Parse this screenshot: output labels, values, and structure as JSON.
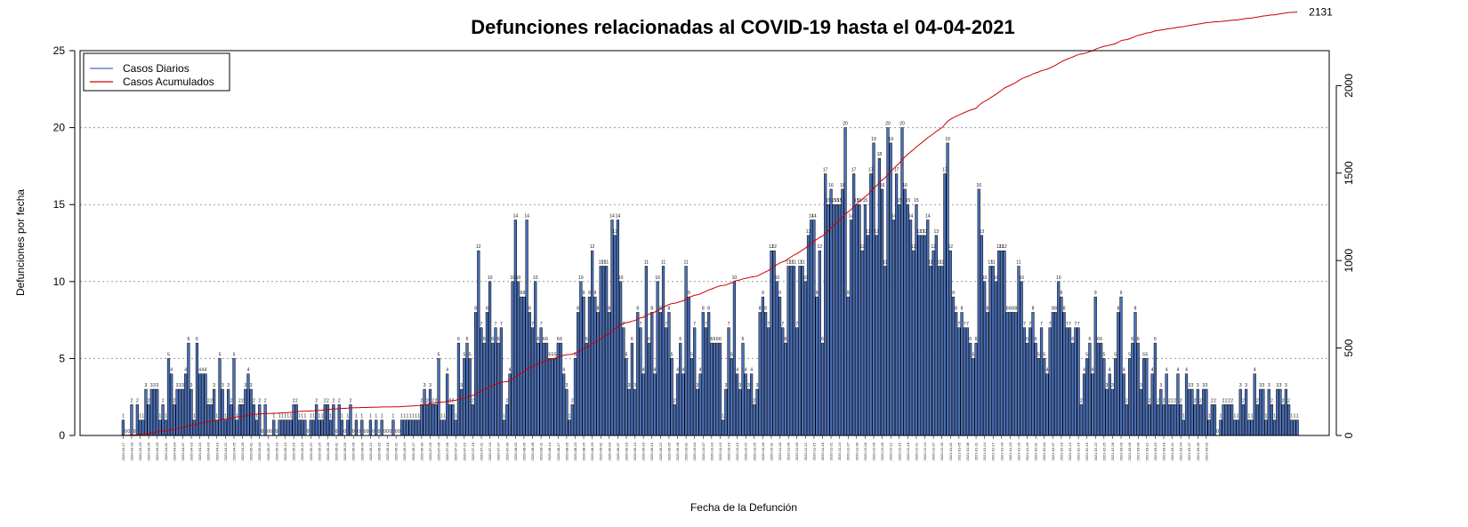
{
  "chart_data": {
    "type": "bar",
    "title": "Defunciones relacionadas al COVID-19 hasta el 04-04-2021",
    "xlabel": "Fecha de la Defunción",
    "ylabel": "Defunciones por fecha",
    "ylim": [
      0,
      25
    ],
    "y_ticks": [
      0,
      5,
      10,
      15,
      20,
      25
    ],
    "y2_ticks": [
      0,
      500,
      1000,
      1500,
      2000
    ],
    "y2lim": [
      0,
      2200
    ],
    "grid": "horizontal-dotted",
    "legend_position": "top-left",
    "colors": {
      "bars": "#4a6fb8",
      "bar_edge": "#000000",
      "cumulative": "#cc0000",
      "daily_legend": "#4a6fb8"
    },
    "start_date": "2020-03-17",
    "end_date": "2021-04-03",
    "cumulative_final_label": "2131",
    "series": [
      {
        "name": "Casos Diarios"
      },
      {
        "name": "Casos Acumulados"
      }
    ],
    "date_labels": [
      "2020-03-17",
      "2020-03-20",
      "2020-03-23",
      "2020-03-26",
      "2020-03-29",
      "2020-04-01",
      "2020-04-04",
      "2020-04-07",
      "2020-04-10",
      "2020-04-13",
      "2020-04-16",
      "2020-04-19",
      "2020-04-22",
      "2020-04-25",
      "2020-04-28",
      "2020-05-01",
      "2020-05-04",
      "2020-05-07",
      "2020-05-10",
      "2020-05-13",
      "2020-05-16",
      "2020-05-19",
      "2020-05-22",
      "2020-05-25",
      "2020-05-28",
      "2020-05-31",
      "2020-06-03",
      "2020-06-06",
      "2020-06-09",
      "2020-06-12",
      "2020-06-15",
      "2020-06-18",
      "2020-06-21",
      "2020-06-24",
      "2020-06-27",
      "2020-06-30",
      "2020-07-03",
      "2020-07-06",
      "2020-07-09",
      "2020-07-12",
      "2020-07-15",
      "2020-07-18",
      "2020-07-21",
      "2020-07-24",
      "2020-07-27",
      "2020-07-30",
      "2020-08-02",
      "2020-08-05",
      "2020-08-08",
      "2020-08-11",
      "2020-08-14",
      "2020-08-17",
      "2020-08-20",
      "2020-08-23",
      "2020-08-26",
      "2020-08-29",
      "2020-09-01",
      "2020-09-04",
      "2020-09-07",
      "2020-09-10",
      "2020-09-13",
      "2020-09-16",
      "2020-09-19",
      "2020-09-22",
      "2020-09-25",
      "2020-09-28",
      "2020-10-01",
      "2020-10-04",
      "2020-10-07",
      "2020-10-10",
      "2020-10-13",
      "2020-10-16",
      "2020-10-19",
      "2020-10-22",
      "2020-10-25",
      "2020-10-28",
      "2020-10-31",
      "2020-11-03",
      "2020-11-06",
      "2020-11-09",
      "2020-11-12",
      "2020-11-15",
      "2020-11-18",
      "2020-11-21",
      "2020-11-24",
      "2020-11-27",
      "2020-11-30",
      "2020-12-03",
      "2020-12-06",
      "2020-12-09",
      "2020-12-12",
      "2020-12-15",
      "2020-12-18",
      "2020-12-21",
      "2020-12-24",
      "2020-12-27",
      "2020-12-30",
      "2021-01-02",
      "2021-01-05",
      "2021-01-08",
      "2021-01-11",
      "2021-01-14",
      "2021-01-17",
      "2021-01-20",
      "2021-01-23",
      "2021-01-26",
      "2021-01-29",
      "2021-02-01",
      "2021-02-04",
      "2021-02-07",
      "2021-02-10",
      "2021-02-13",
      "2021-02-16",
      "2021-02-19",
      "2021-02-22",
      "2021-02-25",
      "2021-02-28",
      "2021-03-03",
      "2021-03-06",
      "2021-03-09",
      "2021-03-12",
      "2021-03-15",
      "2021-03-18",
      "2021-03-21",
      "2021-03-24",
      "2021-03-27",
      "2021-03-30",
      "2021-04-02"
    ],
    "values": [
      1,
      0,
      0,
      2,
      0,
      2,
      1,
      1,
      3,
      2,
      3,
      3,
      3,
      1,
      2,
      1,
      5,
      4,
      2,
      3,
      3,
      3,
      4,
      6,
      3,
      1,
      6,
      4,
      4,
      4,
      2,
      2,
      3,
      1,
      5,
      3,
      1,
      3,
      2,
      5,
      1,
      2,
      2,
      3,
      4,
      3,
      2,
      1,
      2,
      0,
      2,
      0,
      0,
      1,
      0,
      1,
      1,
      1,
      1,
      1,
      2,
      2,
      1,
      1,
      1,
      0,
      1,
      1,
      2,
      1,
      1,
      2,
      2,
      1,
      2,
      0,
      2,
      1,
      0,
      1,
      2,
      0,
      1,
      0,
      1,
      0,
      0,
      1,
      0,
      1,
      0,
      1,
      0,
      0,
      0,
      1,
      0,
      0,
      1,
      1,
      1,
      1,
      1,
      1,
      1,
      2,
      3,
      2,
      3,
      2,
      2,
      5,
      1,
      1,
      4,
      2,
      2,
      1,
      6,
      3,
      5,
      6,
      5,
      2,
      8,
      12,
      7,
      6,
      8,
      10,
      6,
      7,
      6,
      7,
      1,
      2,
      4,
      10,
      14,
      10,
      9,
      9,
      14,
      8,
      7,
      10,
      6,
      7,
      6,
      6,
      5,
      5,
      5,
      6,
      6,
      4,
      3,
      1,
      2,
      5,
      8,
      10,
      9,
      6,
      9,
      12,
      9,
      8,
      11,
      11,
      11,
      8,
      14,
      13,
      14,
      10,
      7,
      5,
      3,
      6,
      3,
      8,
      7,
      4,
      11,
      6,
      8,
      4,
      10,
      8,
      11,
      7,
      8,
      5,
      2,
      4,
      6,
      4,
      11,
      9,
      5,
      7,
      3,
      4,
      8,
      7,
      8,
      6,
      6,
      6,
      6,
      1,
      3,
      7,
      5,
      10,
      4,
      3,
      6,
      4,
      3,
      4,
      2,
      3,
      8,
      9,
      8,
      7,
      12,
      12,
      10,
      9,
      7,
      6,
      11,
      11,
      11,
      7,
      11,
      11,
      10,
      13,
      14,
      14,
      9,
      12,
      6,
      17,
      15,
      16,
      15,
      15,
      15,
      16,
      20,
      9,
      14,
      17,
      15,
      15,
      12,
      15,
      13,
      17,
      19,
      13,
      18,
      16,
      11,
      20,
      19,
      14,
      17,
      15,
      20,
      16,
      15,
      14,
      12,
      15,
      13,
      13,
      13,
      14,
      11,
      12,
      13,
      11,
      11,
      17,
      19,
      12,
      9,
      8,
      7,
      8,
      7,
      7,
      6,
      5,
      6,
      16,
      13,
      10,
      8,
      11,
      11,
      10,
      12,
      12,
      12,
      8,
      8,
      8,
      8,
      11,
      10,
      7,
      6,
      7,
      8,
      6,
      5,
      7,
      5,
      4,
      7,
      8,
      8,
      10,
      9,
      8,
      7,
      7,
      6,
      7,
      7,
      2,
      4,
      5,
      6,
      4,
      9,
      6,
      6,
      5,
      3,
      4,
      3,
      5,
      8,
      9,
      4,
      2,
      5,
      6,
      8,
      6,
      3,
      5,
      5,
      2,
      4,
      6,
      2,
      3,
      2,
      4,
      2,
      2,
      2,
      4,
      2,
      1,
      4,
      3,
      3,
      2,
      3,
      2,
      3,
      3,
      1,
      2,
      2,
      0,
      1,
      2,
      2,
      2,
      2,
      1,
      1,
      3,
      2,
      3,
      1,
      1,
      4,
      2,
      3,
      3,
      1,
      3,
      2,
      1,
      3,
      3,
      2,
      3,
      2,
      1,
      1,
      1
    ]
  }
}
